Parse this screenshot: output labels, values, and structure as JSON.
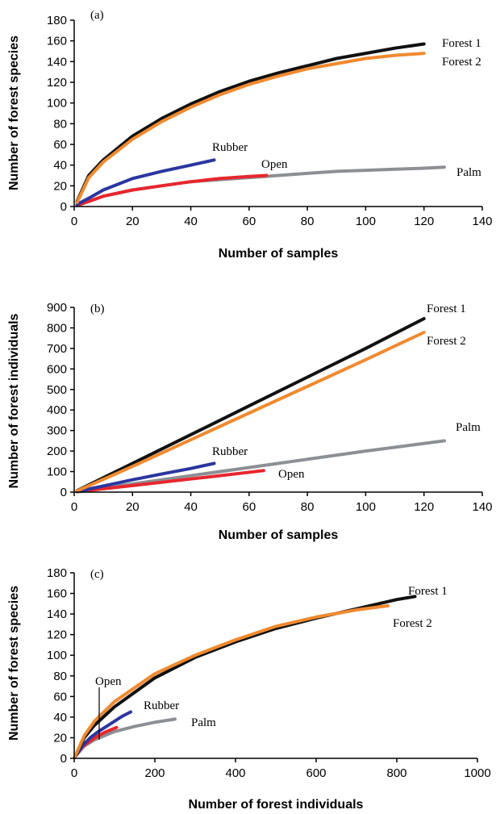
{
  "colors": {
    "Forest 1": "#111111",
    "Forest 2": "#f08a30",
    "Rubber": "#2b36a0",
    "Open": "#e8262e",
    "Palm": "#8c8f93"
  },
  "chart_data": [
    {
      "type": "line",
      "panel_label": "(a)",
      "xlabel": "Number of samples",
      "ylabel": "Number of forest species",
      "xlim": [
        0,
        140
      ],
      "ylim": [
        0,
        180
      ],
      "xticks": [
        0,
        20,
        40,
        60,
        80,
        100,
        120,
        140
      ],
      "yticks": [
        0,
        20,
        40,
        60,
        80,
        100,
        120,
        140,
        160,
        180
      ],
      "grid": false,
      "series": [
        {
          "name": "Forest 1",
          "x": [
            1,
            5,
            10,
            20,
            30,
            40,
            50,
            60,
            70,
            80,
            90,
            100,
            110,
            120
          ],
          "y": [
            5,
            30,
            45,
            68,
            85,
            99,
            111,
            121,
            129,
            136,
            143,
            148,
            153,
            157
          ]
        },
        {
          "name": "Forest 2",
          "x": [
            1,
            5,
            10,
            20,
            30,
            40,
            50,
            60,
            70,
            80,
            90,
            100,
            110,
            120
          ],
          "y": [
            4,
            28,
            43,
            65,
            82,
            96,
            108,
            118,
            126,
            133,
            138,
            143,
            146,
            148
          ]
        },
        {
          "name": "Rubber",
          "x": [
            1,
            5,
            10,
            20,
            30,
            40,
            48
          ],
          "y": [
            2,
            8,
            16,
            27,
            34,
            40,
            45
          ]
        },
        {
          "name": "Open",
          "x": [
            1,
            5,
            10,
            20,
            30,
            40,
            50,
            60,
            66
          ],
          "y": [
            1,
            5,
            10,
            16,
            20,
            24,
            27,
            29,
            30
          ]
        },
        {
          "name": "Palm",
          "x": [
            1,
            10,
            20,
            30,
            40,
            50,
            60,
            70,
            80,
            90,
            100,
            110,
            120,
            127
          ],
          "y": [
            1,
            10,
            16,
            20,
            24,
            26,
            28,
            30,
            32,
            34,
            35,
            36,
            37,
            38
          ]
        }
      ]
    },
    {
      "type": "line",
      "panel_label": "(b)",
      "xlabel": "Number of samples",
      "ylabel": "Number of forest individuals",
      "xlim": [
        0,
        140
      ],
      "ylim": [
        0,
        900
      ],
      "xticks": [
        0,
        20,
        40,
        60,
        80,
        100,
        120,
        140
      ],
      "yticks": [
        0,
        100,
        200,
        300,
        400,
        500,
        600,
        700,
        800,
        900
      ],
      "grid": false,
      "series": [
        {
          "name": "Forest 1",
          "x": [
            1,
            20,
            40,
            60,
            80,
            100,
            120
          ],
          "y": [
            7,
            140,
            280,
            420,
            560,
            700,
            845
          ]
        },
        {
          "name": "Forest 2",
          "x": [
            1,
            20,
            40,
            60,
            80,
            100,
            120
          ],
          "y": [
            6,
            125,
            255,
            385,
            515,
            645,
            778
          ]
        },
        {
          "name": "Rubber",
          "x": [
            1,
            10,
            20,
            30,
            40,
            48
          ],
          "y": [
            3,
            30,
            60,
            88,
            115,
            140
          ]
        },
        {
          "name": "Open",
          "x": [
            1,
            10,
            20,
            30,
            40,
            50,
            65
          ],
          "y": [
            2,
            16,
            32,
            48,
            64,
            80,
            105
          ]
        },
        {
          "name": "Palm",
          "x": [
            1,
            20,
            40,
            60,
            80,
            100,
            127
          ],
          "y": [
            2,
            40,
            80,
            120,
            160,
            200,
            250
          ]
        }
      ]
    },
    {
      "type": "line",
      "panel_label": "(c)",
      "xlabel": "Number of forest individuals",
      "ylabel": "Number of forest species",
      "xlim": [
        0,
        1000
      ],
      "ylim": [
        0,
        180
      ],
      "xticks": [
        0,
        200,
        400,
        600,
        800,
        1000
      ],
      "yticks": [
        0,
        20,
        40,
        60,
        80,
        100,
        120,
        140,
        160,
        180
      ],
      "grid": false,
      "series": [
        {
          "name": "Forest 1",
          "x": [
            1,
            25,
            50,
            100,
            200,
            300,
            400,
            500,
            600,
            700,
            800,
            845
          ],
          "y": [
            1,
            20,
            32,
            50,
            78,
            98,
            113,
            126,
            136,
            145,
            154,
            157
          ]
        },
        {
          "name": "Forest 2",
          "x": [
            1,
            25,
            50,
            100,
            200,
            300,
            400,
            500,
            600,
            700,
            778
          ],
          "y": [
            1,
            22,
            36,
            55,
            82,
            100,
            115,
            128,
            137,
            144,
            148
          ]
        },
        {
          "name": "Rubber",
          "x": [
            1,
            20,
            40,
            60,
            80,
            100,
            120,
            140
          ],
          "y": [
            1,
            12,
            20,
            26,
            31,
            36,
            41,
            45
          ]
        },
        {
          "name": "Open",
          "x": [
            1,
            20,
            40,
            60,
            80,
            105
          ],
          "y": [
            1,
            11,
            17,
            22,
            26,
            30
          ]
        },
        {
          "name": "Palm",
          "x": [
            1,
            25,
            50,
            100,
            150,
            200,
            250
          ],
          "y": [
            1,
            12,
            18,
            26,
            31,
            35,
            38
          ]
        }
      ]
    }
  ]
}
